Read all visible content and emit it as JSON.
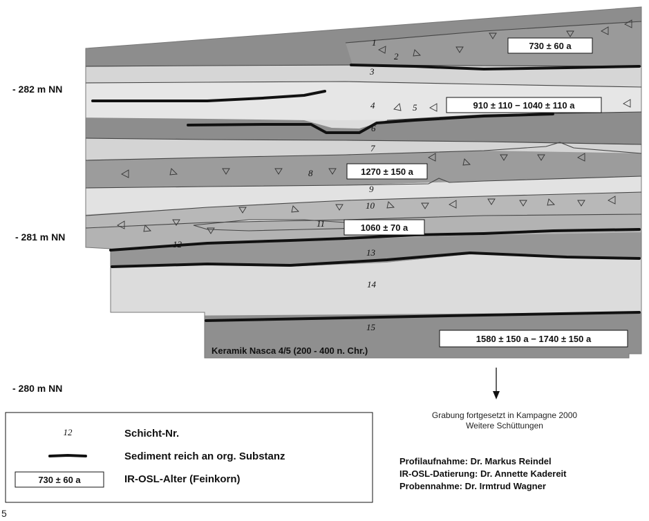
{
  "elevations": {
    "e282": "- 282 m NN",
    "e281": "- 281 m NN",
    "e280": "- 280 m NN"
  },
  "layer_numbers": [
    "1",
    "2",
    "3",
    "4",
    "5",
    "6",
    "7",
    "8",
    "9",
    "10",
    "11",
    "12",
    "13",
    "14",
    "15"
  ],
  "ages": {
    "a1": "730 ± 60 a",
    "a2": "910 ± 110 − 1040 ± 110 a",
    "a3": "1270 ± 150 a",
    "a4": "1060 ± 70 a",
    "a5": "1580 ± 150 a − 1740 ± 150 a"
  },
  "ceramic_label": "Keramik Nasca 4/5 (200 - 400 n. Chr.)",
  "continuation": {
    "line1": "Grabung fortgesetzt in Kampagne 2000",
    "line2": "Weitere Schüttungen"
  },
  "legend": {
    "layer_symbol": "12",
    "layer_label": "Schicht-Nr.",
    "sediment_label": "Sediment reich an org. Substanz",
    "age_symbol": "730 ± 60 a",
    "age_label": "IR-OSL-Alter (Feinkorn)"
  },
  "credits": {
    "c1": "Profilaufnahme: Dr. Markus Reindel",
    "c2": "IR-OSL-Datierung: Dr. Annette Kadereit",
    "c3": "Probennahme: Dr. Irmtrud Wagner"
  },
  "figure_number": "5",
  "colors": {
    "dark_layer": "#8f8f8f",
    "light_layer": "#dedede",
    "mid_layer": "#b5b5b5",
    "organic_band": "#111111"
  }
}
